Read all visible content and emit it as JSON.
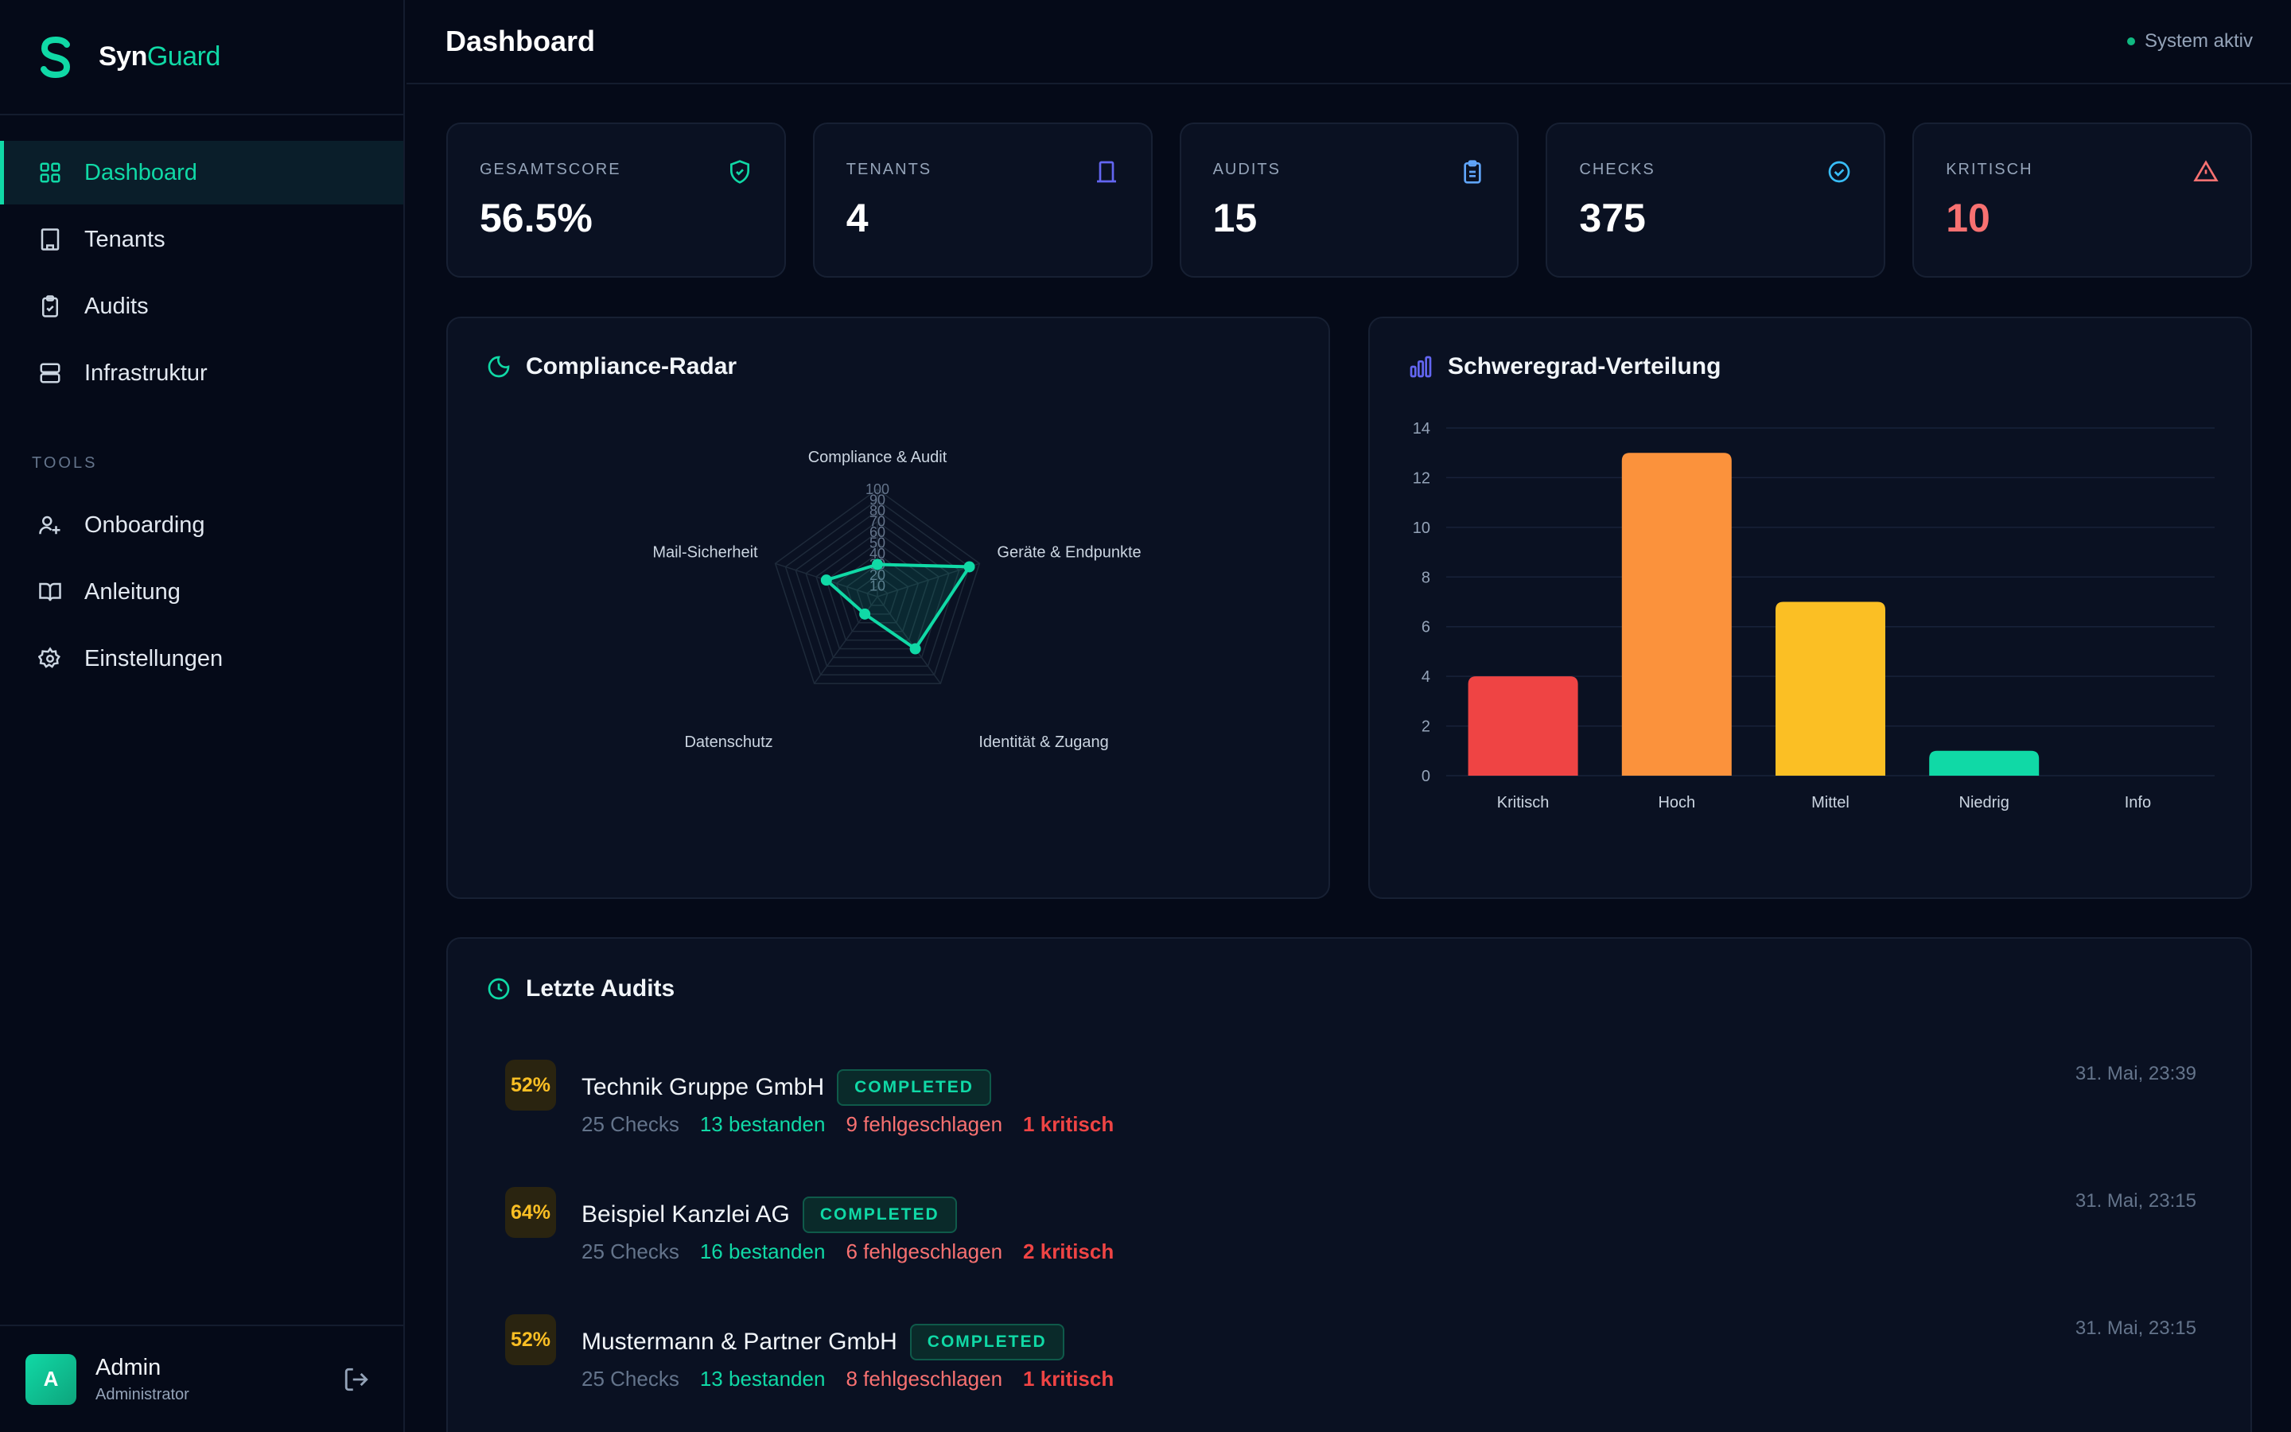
{
  "brand": {
    "part1": "Syn",
    "part2": "Guard",
    "accent": "#10d9a6"
  },
  "sidebar": {
    "items": [
      {
        "label": "Dashboard",
        "icon": "grid-icon",
        "active": true
      },
      {
        "label": "Tenants",
        "icon": "building-icon"
      },
      {
        "label": "Audits",
        "icon": "clipboard-check-icon"
      },
      {
        "label": "Infrastruktur",
        "icon": "server-icon"
      }
    ],
    "tools_title": "TOOLS",
    "tools": [
      {
        "label": "Onboarding",
        "icon": "user-plus-icon"
      },
      {
        "label": "Anleitung",
        "icon": "book-icon"
      },
      {
        "label": "Einstellungen",
        "icon": "gear-icon"
      }
    ]
  },
  "user": {
    "initial": "A",
    "name": "Admin",
    "role": "Administrator"
  },
  "header": {
    "title": "Dashboard",
    "status": "System aktiv"
  },
  "stats": [
    {
      "label": "GESAMTSCORE",
      "value": "56.5%",
      "icon": "shield-check-icon",
      "color": "#10d9a6"
    },
    {
      "label": "TENANTS",
      "value": "4",
      "icon": "door-icon",
      "color": "#6366f1"
    },
    {
      "label": "AUDITS",
      "value": "15",
      "icon": "clipboard-icon",
      "color": "#60a5fa"
    },
    {
      "label": "CHECKS",
      "value": "375",
      "icon": "check-circle-icon",
      "color": "#38bdf8"
    },
    {
      "label": "KRITISCH",
      "value": "10",
      "icon": "warning-icon",
      "color": "#f87171"
    }
  ],
  "radar_title": "Compliance-Radar",
  "bar_title": "Schweregrad-Verteilung",
  "chart_data": [
    {
      "type": "radar",
      "axes": [
        "Compliance & Audit",
        "Geräte & Endpunkte",
        "Identität & Zugang",
        "Datenschutz",
        "Mail-Sicherheit"
      ],
      "values": [
        30,
        90,
        60,
        20,
        50
      ],
      "ticks": [
        "10",
        "20",
        "30",
        "40",
        "50",
        "60",
        "70",
        "80",
        "90",
        "100"
      ],
      "range": [
        0,
        100
      ],
      "color": "#10d9a6"
    },
    {
      "type": "bar",
      "categories": [
        "Kritisch",
        "Hoch",
        "Mittel",
        "Niedrig",
        "Info"
      ],
      "values": [
        4,
        13,
        7,
        1,
        0
      ],
      "colors": [
        "#ef4444",
        "#fb923c",
        "#fbbf24",
        "#10d9a6",
        "#64748b"
      ],
      "yticks": [
        "0",
        "2",
        "4",
        "6",
        "8",
        "10",
        "12",
        "14"
      ],
      "ylim": [
        0,
        14
      ]
    }
  ],
  "audits_title": "Letzte Audits",
  "audits": [
    {
      "score": "52%",
      "name": "Technik Gruppe GmbH",
      "status": "COMPLETED",
      "checks": "25 Checks",
      "passed": "13 bestanden",
      "failed": "9 fehlgeschlagen",
      "critical": "1 kritisch",
      "time": "31. Mai, 23:39"
    },
    {
      "score": "64%",
      "name": "Beispiel Kanzlei AG",
      "status": "COMPLETED",
      "checks": "25 Checks",
      "passed": "16 bestanden",
      "failed": "6 fehlgeschlagen",
      "critical": "2 kritisch",
      "time": "31. Mai, 23:15"
    },
    {
      "score": "52%",
      "name": "Mustermann & Partner GmbH",
      "status": "COMPLETED",
      "checks": "25 Checks",
      "passed": "13 bestanden",
      "failed": "8 fehlgeschlagen",
      "critical": "1 kritisch",
      "time": "31. Mai, 23:15"
    }
  ]
}
